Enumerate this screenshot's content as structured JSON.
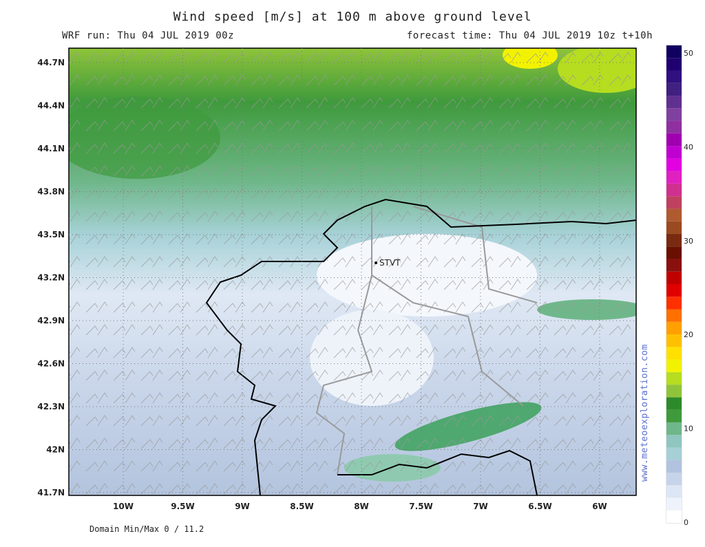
{
  "header": {
    "title": "Wind speed [m/s] at 100 m above ground level",
    "run": "WRF run: Thu 04 JUL 2019 00z",
    "forecast": "forecast time: Thu 04 JUL 2019 10z  t+10h"
  },
  "map": {
    "lat_labels": [
      "44.7N",
      "44.4N",
      "44.1N",
      "43.8N",
      "43.5N",
      "43.2N",
      "42.9N",
      "42.6N",
      "42.3N",
      "42N",
      "41.7N"
    ],
    "lon_labels": [
      "10W",
      "9.5W",
      "9W",
      "8.5W",
      "8W",
      "7.5W",
      "7W",
      "6.5W",
      "6W"
    ],
    "station": "STVT"
  },
  "colorbar": {
    "labels": [
      50,
      40,
      30,
      20,
      10,
      0
    ]
  },
  "watermark": "www.meteoexploration.com",
  "footer": "Domain Min/Max 0 / 11.2"
}
